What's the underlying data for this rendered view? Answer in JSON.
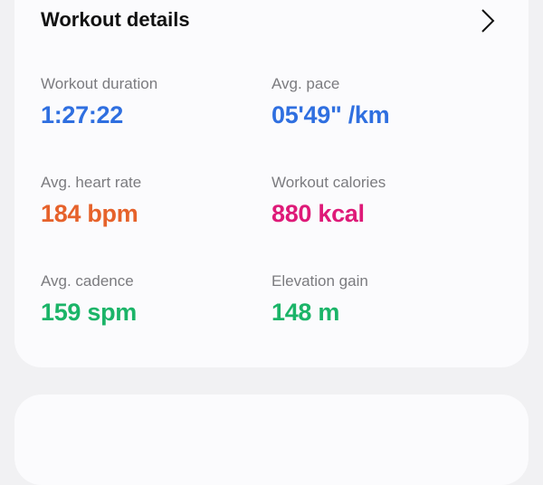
{
  "header": {
    "title": "Workout details",
    "chevron_icon": "chevron-right-icon"
  },
  "stats": [
    {
      "label": "Workout duration",
      "value": "1:27:22",
      "color": "#2f6fe0"
    },
    {
      "label": "Avg. pace",
      "value": "05'49\" /km",
      "color": "#2f6fe0"
    },
    {
      "label": "Avg. heart rate",
      "value": "184 bpm",
      "color": "#e6622b"
    },
    {
      "label": "Workout calories",
      "value": "880 kcal",
      "color": "#de1a78"
    },
    {
      "label": "Avg. cadence",
      "value": "159 spm",
      "color": "#1bb468"
    },
    {
      "label": "Elevation gain",
      "value": "148 m",
      "color": "#1bb468"
    }
  ]
}
